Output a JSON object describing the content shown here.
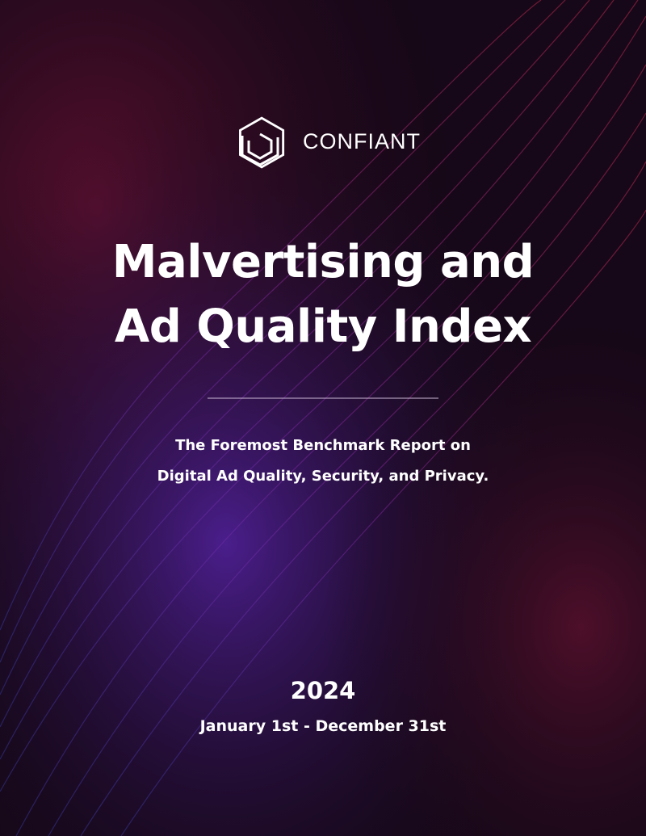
{
  "brand": "CONFIANT",
  "title": [
    "Malvertising and",
    "Ad Quality Index"
  ],
  "subtitle": [
    "The Foremost Benchmark Report on",
    "Digital Ad Quality, Security, and Privacy."
  ],
  "year": "2024",
  "date_range": "January 1st - December 31st"
}
